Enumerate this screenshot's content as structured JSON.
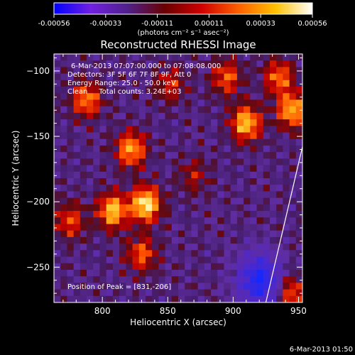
{
  "chart_data": {
    "type": "heatmap",
    "title": "Reconstructed RHESSI Image",
    "xlabel": "Heliocentric X (arcsec)",
    "ylabel": "Heliocentric Y (arcsec)",
    "xlim": [
      763,
      953
    ],
    "ylim": [
      -277,
      -87
    ],
    "x_ticks": [
      800,
      850,
      900,
      950
    ],
    "y_ticks": [
      -100,
      -150,
      -200,
      -250
    ],
    "colorbar": {
      "ticks": [
        "-0.00056",
        "-0.00033",
        "-0.00011",
        "0.00011",
        "0.00033",
        "0.00056"
      ],
      "unit_label": "(photons cm⁻² s⁻¹ asec⁻²)",
      "range": [
        -0.00056,
        0.00056
      ],
      "colors": [
        "#0000ff",
        "#7020e0",
        "#50208a",
        "#6a0000",
        "#d00000",
        "#ff6000",
        "#ffc000",
        "#ffffff"
      ]
    },
    "annotations": {
      "time_range": "6-Mar-2013 07:07:00.000 to 07:08:08.000",
      "detectors": "Detectors: 3F 5F 6F 7F 8F 9F, Att 0",
      "energy": "Energy Range: 25.0 - 50.0 keV",
      "clean": "Clean     Total counts: 3.24E+03",
      "peak": "Position of Peak = [831,-206]"
    },
    "sources": [
      {
        "x": 833,
        "y": -202,
        "intensity": 1.0
      },
      {
        "x": 808,
        "y": -207,
        "intensity": 0.85
      },
      {
        "x": 822,
        "y": -160,
        "intensity": 0.75
      },
      {
        "x": 788,
        "y": -122,
        "intensity": 0.65
      },
      {
        "x": 910,
        "y": -140,
        "intensity": 0.85
      },
      {
        "x": 945,
        "y": -130,
        "intensity": 0.8
      },
      {
        "x": 935,
        "y": -105,
        "intensity": 0.6
      },
      {
        "x": 895,
        "y": -105,
        "intensity": 0.55
      },
      {
        "x": 775,
        "y": -215,
        "intensity": 0.5
      },
      {
        "x": 830,
        "y": -240,
        "intensity": 0.55
      },
      {
        "x": 852,
        "y": -110,
        "intensity": 0.4
      },
      {
        "x": 945,
        "y": -270,
        "intensity": 0.55
      },
      {
        "x": 870,
        "y": -180,
        "intensity": 0.3
      }
    ],
    "negative_region": {
      "x": 920,
      "y": -260,
      "intensity": -0.85
    },
    "limb_line": [
      [
        953,
        -158
      ],
      [
        925,
        -277
      ]
    ],
    "footer_timestamp": "6-Mar-2013 01:50"
  }
}
